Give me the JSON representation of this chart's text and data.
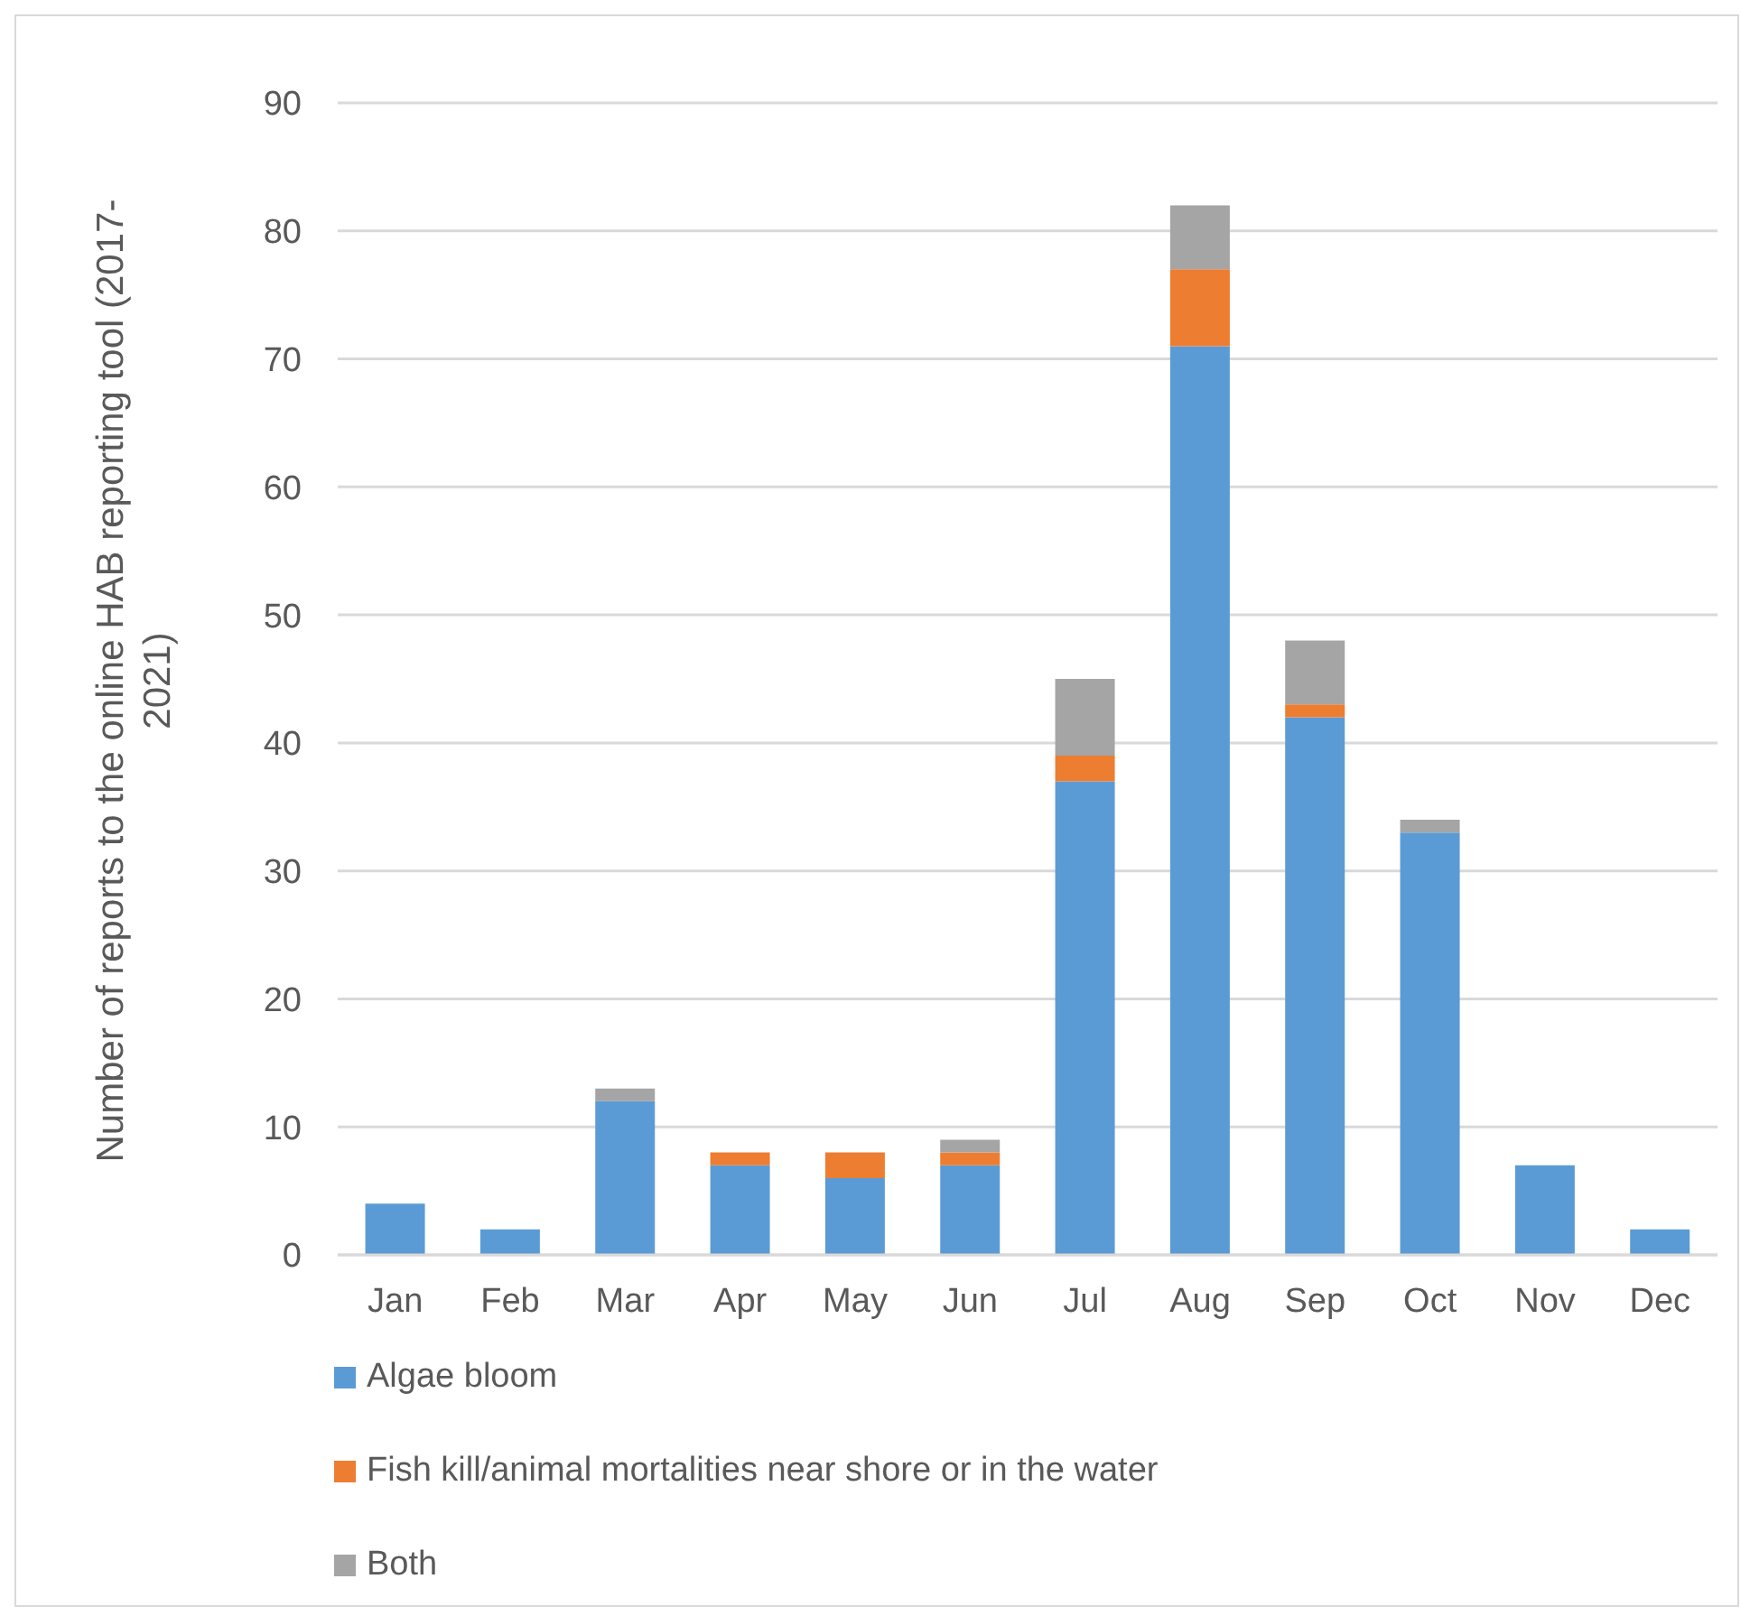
{
  "chart_data": {
    "type": "bar",
    "stacked": true,
    "ylabel": "Number of reports to the online HAB reporting tool (2017-2021)",
    "categories": [
      "Jan",
      "Feb",
      "Mar",
      "Apr",
      "May",
      "Jun",
      "Jul",
      "Aug",
      "Sep",
      "Oct",
      "Nov",
      "Dec"
    ],
    "series": [
      {
        "name": "Algae bloom",
        "color": "#5b9bd5",
        "values": [
          4,
          2,
          12,
          7,
          6,
          7,
          37,
          71,
          42,
          33,
          7,
          2
        ]
      },
      {
        "name": "Fish kill/animal mortalities near shore or in the water",
        "color": "#ed7d31",
        "values": [
          0,
          0,
          0,
          1,
          2,
          1,
          2,
          6,
          1,
          0,
          0,
          0
        ]
      },
      {
        "name": "Both",
        "color": "#a5a5a5",
        "values": [
          0,
          0,
          1,
          0,
          0,
          1,
          6,
          5,
          5,
          1,
          0,
          0
        ]
      }
    ],
    "ylim": [
      0,
      90
    ],
    "yticks": [
      0,
      10,
      20,
      30,
      40,
      50,
      60,
      70,
      80,
      90
    ],
    "grid": "y",
    "legend": "bottom"
  }
}
